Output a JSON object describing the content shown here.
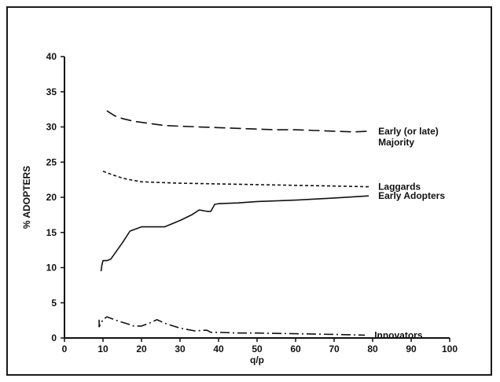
{
  "chart_data": {
    "type": "line",
    "title": "",
    "xlabel": "q/p",
    "ylabel": "% ADOPTERS",
    "xlim": [
      0,
      100
    ],
    "ylim": [
      0,
      40
    ],
    "x_ticks": [
      0,
      10,
      20,
      30,
      40,
      50,
      60,
      70,
      80,
      90,
      100
    ],
    "y_ticks": [
      0,
      5,
      10,
      15,
      20,
      25,
      30,
      35,
      40
    ],
    "grid": false,
    "legend": "none",
    "series": [
      {
        "name": "Early (or late) Majority",
        "label_lines": [
          "Early (or late)",
          "Majority"
        ],
        "style": "long-dash",
        "x": [
          11,
          13,
          15,
          18,
          22,
          26,
          30,
          35,
          40,
          45,
          50,
          55,
          60,
          65,
          70,
          75,
          79
        ],
        "y": [
          32.3,
          31.6,
          31.2,
          30.8,
          30.5,
          30.2,
          30.1,
          30.0,
          29.9,
          29.8,
          29.7,
          29.6,
          29.6,
          29.5,
          29.4,
          29.3,
          29.4
        ]
      },
      {
        "name": "Laggards",
        "label_lines": [
          "Laggards"
        ],
        "style": "short-dash",
        "x": [
          10,
          12,
          14,
          16,
          18,
          20,
          25,
          30,
          35,
          40,
          50,
          60,
          70,
          79
        ],
        "y": [
          23.7,
          23.3,
          22.9,
          22.6,
          22.4,
          22.2,
          22.1,
          22.0,
          21.95,
          21.9,
          21.8,
          21.7,
          21.6,
          21.5
        ]
      },
      {
        "name": "Early Adopters",
        "label_lines": [
          "Early Adopters"
        ],
        "style": "solid",
        "x": [
          9.5,
          9.7,
          10,
          11,
          12,
          15,
          17,
          20,
          22,
          26,
          30,
          33,
          35,
          37,
          38,
          39,
          40,
          45,
          50,
          60,
          70,
          79
        ],
        "y": [
          9.5,
          10.3,
          11.0,
          11.0,
          11.2,
          13.5,
          15.2,
          15.8,
          15.8,
          15.8,
          16.7,
          17.5,
          18.2,
          18.0,
          18.0,
          19.0,
          19.1,
          19.2,
          19.4,
          19.6,
          19.9,
          20.2
        ]
      },
      {
        "name": "Innovators",
        "label_lines": [
          "Innovators"
        ],
        "style": "dash-dot",
        "x": [
          9,
          9,
          10,
          11,
          12,
          14,
          17,
          18,
          20,
          22,
          24,
          26,
          30,
          34,
          36,
          37,
          38,
          40,
          45,
          50,
          60,
          70,
          78
        ],
        "y": [
          2.6,
          1.6,
          2.6,
          3.0,
          2.8,
          2.4,
          1.9,
          1.7,
          1.7,
          2.1,
          2.6,
          2.1,
          1.4,
          1.0,
          1.1,
          1.1,
          0.8,
          0.8,
          0.7,
          0.7,
          0.6,
          0.5,
          0.4
        ]
      }
    ]
  }
}
